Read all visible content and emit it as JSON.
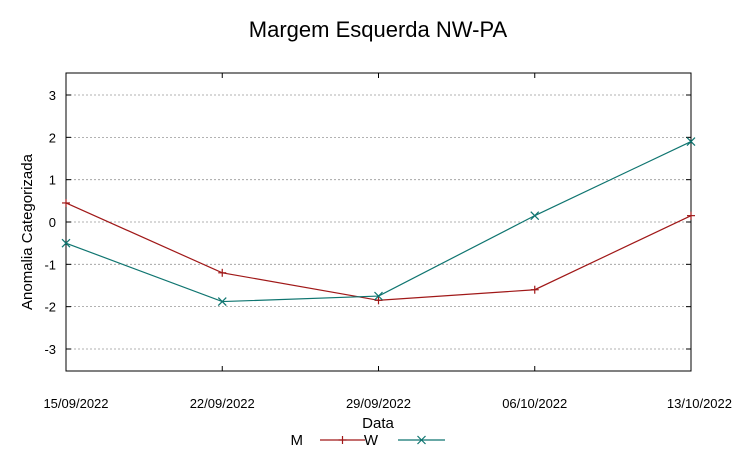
{
  "chart_data": {
    "type": "line",
    "title": "Margem Esquerda NW-PA",
    "xlabel": "Data",
    "ylabel": "Anomalia Categorizada",
    "categories": [
      "15/09/2022",
      "22/09/2022",
      "29/09/2022",
      "06/10/2022",
      "13/10/2022"
    ],
    "yticks": [
      3,
      2,
      1,
      0,
      -1,
      -2,
      -3
    ],
    "ylim": [
      -3.6,
      3.5
    ],
    "grid": true,
    "legend_position": "bottom",
    "series": [
      {
        "name": "M",
        "marker": "+",
        "color": "#a01818",
        "values": [
          0.45,
          -1.2,
          -1.85,
          -1.6,
          0.15
        ]
      },
      {
        "name": "W",
        "marker": "x",
        "color": "#0f7570",
        "values": [
          -0.5,
          -1.88,
          -1.75,
          0.15,
          1.9
        ]
      }
    ]
  }
}
